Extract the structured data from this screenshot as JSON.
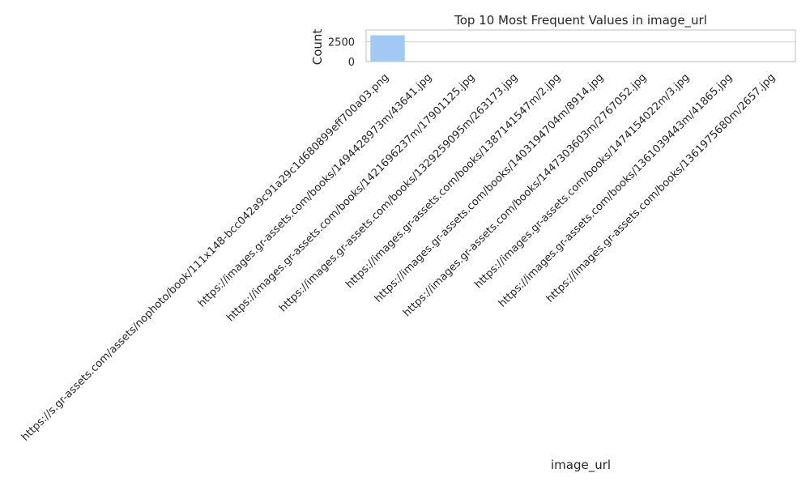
{
  "chart_data": {
    "type": "bar",
    "title": "Top 10 Most Frequent Values in image_url",
    "xlabel": "image_url",
    "ylabel": "Count",
    "categories": [
      "https://s.gr-assets.com/assets/nophoto/book/111x148-bcc042a9c91a29c1d680899eff700a03.png",
      "https://images.gr-assets.com/books/1494428973m/43641.jpg",
      "https://images.gr-assets.com/books/1421696237m/17901125.jpg",
      "https://images.gr-assets.com/books/1329259095m/263173.jpg",
      "https://images.gr-assets.com/books/1387141547m/2.jpg",
      "https://images.gr-assets.com/books/1403194704m/8914.jpg",
      "https://images.gr-assets.com/books/1447303603m/2767052.jpg",
      "https://images.gr-assets.com/books/1474154022m/3.jpg",
      "https://images.gr-assets.com/books/1361039443m/41865.jpg",
      "https://images.gr-assets.com/books/1361975680m/2657.jpg"
    ],
    "values": [
      3332,
      1,
      1,
      1,
      1,
      1,
      1,
      1,
      1,
      1
    ],
    "ylim": [
      0,
      4000
    ],
    "yticks": [
      0,
      2500
    ],
    "grid": true,
    "colors": {
      "bar": "#a1c9f4",
      "grid": "#dadada",
      "spine": "#cccccc",
      "text": "#262626"
    }
  }
}
